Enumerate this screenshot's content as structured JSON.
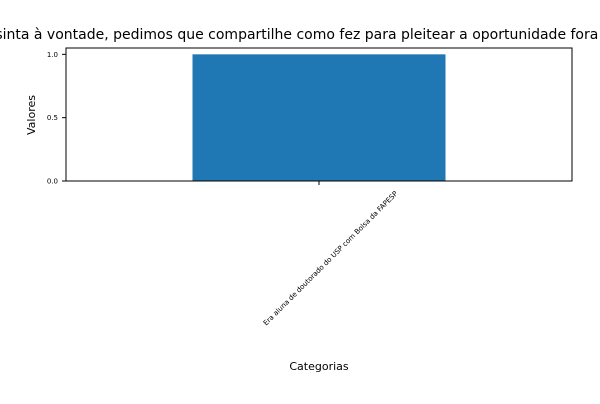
{
  "chart_data": {
    "type": "bar",
    "title": "Caso se sinta à vontade, pedimos que compartilhe como fez para pleitear a oportunidade fora do Brasil",
    "xlabel": "Categorias",
    "ylabel": "Valores",
    "categories": [
      "Era aluna de doutorado do USP com Bolsa da FAPESP"
    ],
    "values": [
      1.0
    ],
    "ylim": [
      0,
      1.05
    ],
    "yticks": [
      "0.0",
      "0.5",
      "1.0"
    ],
    "ytick_values": [
      0,
      0.5,
      1.0
    ],
    "grid": false,
    "legend": "none",
    "colors": {
      "bar": "#1f77b4",
      "axes": "#000000",
      "background": "#ffffff"
    }
  }
}
